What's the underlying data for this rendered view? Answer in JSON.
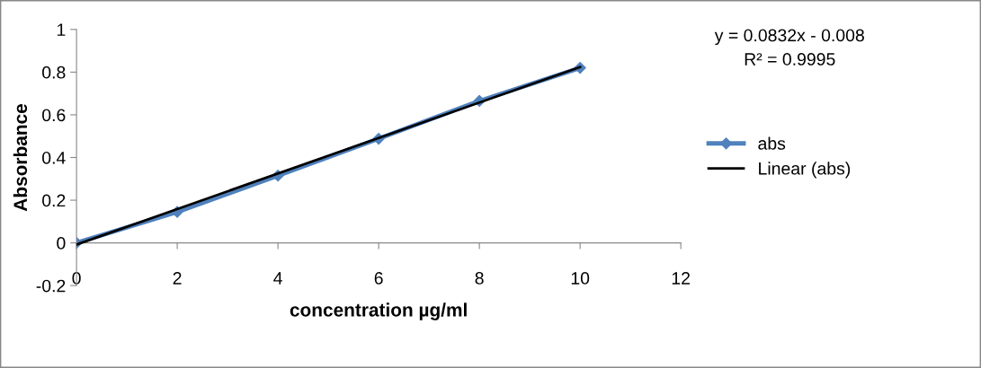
{
  "chart_data": {
    "type": "line",
    "xlabel": "concentration µg/ml",
    "ylabel": "Absorbance",
    "x": [
      0,
      2,
      4,
      6,
      8,
      10
    ],
    "series": [
      {
        "name": "abs",
        "color": "#4f81bd",
        "values": [
          0,
          0.145,
          0.315,
          0.488,
          0.665,
          0.82
        ],
        "marker": "diamond"
      },
      {
        "name": "Linear (abs)",
        "color": "#000000",
        "x": [
          0,
          10
        ],
        "values": [
          -0.008,
          0.824
        ],
        "marker": "none"
      }
    ],
    "xlim": [
      0,
      12
    ],
    "xticks": [
      0,
      2,
      4,
      6,
      8,
      10,
      12
    ],
    "ylim": [
      -0.2,
      1
    ],
    "yticks": [
      -0.2,
      0,
      0.2,
      0.4,
      0.6,
      0.8,
      1
    ],
    "grid": false,
    "legend": "right",
    "annotations": [
      "y = 0.0832x - 0.008",
      "R² = 0.9995"
    ]
  }
}
